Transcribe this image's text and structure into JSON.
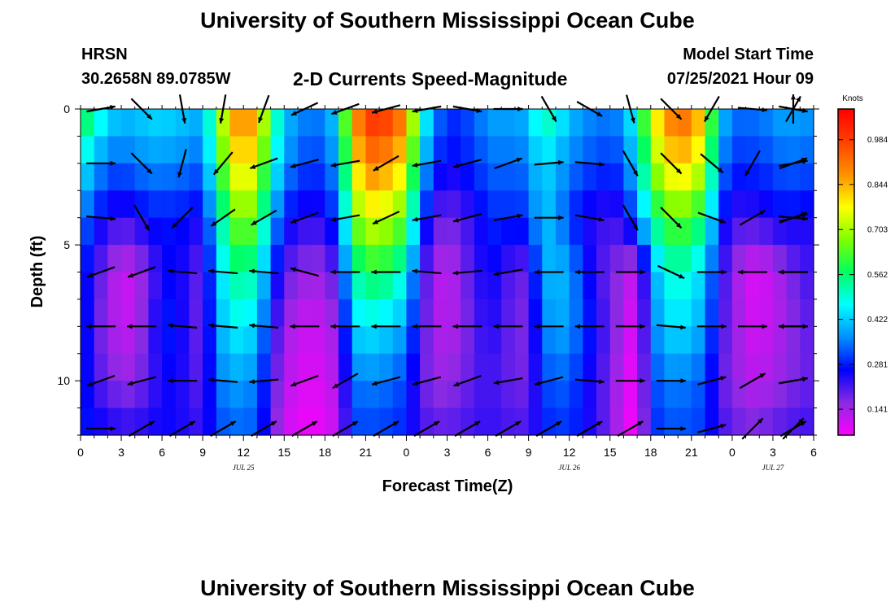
{
  "header": {
    "title": "University of Southern Mississippi Ocean Cube",
    "footer_title": "University of Southern Mississippi Ocean Cube",
    "station": "HRSN",
    "coordinates": "30.2658N  89.0785W",
    "subtitle": "2-D Currents Speed-Magnitude",
    "start_label": "Model Start Time",
    "start_value": "07/25/2021 Hour 09"
  },
  "chart_data": {
    "type": "heatmap",
    "title": "2-D Currents Speed-Magnitude",
    "xlabel": "Forecast Time(Z)",
    "ylabel": "Depth (ft)",
    "x_ticks": [
      "0",
      "3",
      "6",
      "9",
      "12",
      "15",
      "18",
      "21",
      "0",
      "3",
      "6",
      "9",
      "12",
      "15",
      "18",
      "21",
      "0",
      "3",
      "6"
    ],
    "x_range_hours": [
      0,
      54
    ],
    "date_labels": [
      {
        "label": "JUL 25",
        "hour": 12
      },
      {
        "label": "JUL 26",
        "hour": 36
      },
      {
        "label": "JUL 27",
        "hour": 51
      }
    ],
    "y_ticks": [
      "0",
      "5",
      "10"
    ],
    "y_range_ft": [
      0,
      12
    ],
    "colorbar": {
      "title": "Knots",
      "labels": [
        "0.984",
        "0.844",
        "0.703",
        "0.562",
        "0.422",
        "0.281",
        "0.141"
      ],
      "range": [
        0.06,
        1.08
      ]
    },
    "time_hours": [
      0,
      1,
      2,
      3,
      4,
      5,
      6,
      7,
      8,
      9,
      10,
      11,
      12,
      13,
      14,
      15,
      16,
      17,
      18,
      19,
      20,
      21,
      22,
      23,
      24,
      25,
      26,
      27,
      28,
      29,
      30,
      31,
      32,
      33,
      34,
      35,
      36,
      37,
      38,
      39,
      40,
      41,
      42,
      43,
      44,
      45,
      46,
      47,
      48,
      49,
      50,
      51,
      52,
      53,
      54
    ],
    "depth_ft": [
      0,
      2,
      4,
      6,
      8,
      10,
      12
    ],
    "speed_knots_by_depth": [
      [
        0.62,
        0.55,
        0.45,
        0.42,
        0.42,
        0.44,
        0.45,
        0.43,
        0.42,
        0.4,
        0.62,
        0.85,
        0.92,
        0.85,
        0.6,
        0.42,
        0.38,
        0.35,
        0.37,
        0.45,
        0.85,
        1.0,
        1.02,
        0.98,
        0.9,
        0.55,
        0.38,
        0.3,
        0.3,
        0.34,
        0.38,
        0.4,
        0.38,
        0.42,
        0.55,
        0.5,
        0.42,
        0.38,
        0.36,
        0.36,
        0.38,
        0.52,
        0.75,
        0.88,
        0.95,
        0.92,
        0.8,
        0.45,
        0.35,
        0.35,
        0.35,
        0.38,
        0.4,
        0.38,
        0.38
      ],
      [
        0.48,
        0.4,
        0.34,
        0.33,
        0.35,
        0.37,
        0.37,
        0.36,
        0.35,
        0.33,
        0.55,
        0.75,
        0.82,
        0.75,
        0.52,
        0.38,
        0.33,
        0.3,
        0.32,
        0.4,
        0.75,
        0.9,
        0.9,
        0.85,
        0.78,
        0.45,
        0.3,
        0.26,
        0.27,
        0.3,
        0.33,
        0.35,
        0.33,
        0.36,
        0.45,
        0.4,
        0.36,
        0.33,
        0.31,
        0.3,
        0.32,
        0.45,
        0.65,
        0.78,
        0.82,
        0.8,
        0.7,
        0.38,
        0.29,
        0.3,
        0.3,
        0.32,
        0.34,
        0.33,
        0.33
      ],
      [
        0.36,
        0.29,
        0.24,
        0.22,
        0.24,
        0.27,
        0.28,
        0.27,
        0.27,
        0.24,
        0.45,
        0.62,
        0.7,
        0.62,
        0.42,
        0.28,
        0.25,
        0.23,
        0.25,
        0.32,
        0.62,
        0.75,
        0.74,
        0.7,
        0.63,
        0.34,
        0.21,
        0.18,
        0.2,
        0.24,
        0.28,
        0.3,
        0.28,
        0.31,
        0.42,
        0.38,
        0.3,
        0.25,
        0.23,
        0.22,
        0.24,
        0.35,
        0.52,
        0.62,
        0.66,
        0.62,
        0.55,
        0.3,
        0.22,
        0.22,
        0.23,
        0.25,
        0.27,
        0.25,
        0.25
      ],
      [
        0.3,
        0.22,
        0.16,
        0.1,
        0.12,
        0.18,
        0.25,
        0.27,
        0.22,
        0.18,
        0.4,
        0.52,
        0.55,
        0.5,
        0.32,
        0.2,
        0.17,
        0.14,
        0.16,
        0.22,
        0.5,
        0.58,
        0.58,
        0.55,
        0.47,
        0.25,
        0.14,
        0.11,
        0.16,
        0.22,
        0.26,
        0.24,
        0.18,
        0.2,
        0.38,
        0.42,
        0.38,
        0.3,
        0.22,
        0.18,
        0.14,
        0.1,
        0.36,
        0.47,
        0.52,
        0.47,
        0.42,
        0.24,
        0.17,
        0.1,
        0.09,
        0.12,
        0.16,
        0.2,
        0.22
      ],
      [
        0.32,
        0.2,
        0.15,
        0.11,
        0.12,
        0.2,
        0.28,
        0.28,
        0.22,
        0.17,
        0.38,
        0.45,
        0.47,
        0.42,
        0.26,
        0.15,
        0.12,
        0.1,
        0.12,
        0.16,
        0.42,
        0.46,
        0.44,
        0.42,
        0.38,
        0.22,
        0.14,
        0.12,
        0.15,
        0.2,
        0.24,
        0.22,
        0.17,
        0.18,
        0.34,
        0.4,
        0.37,
        0.32,
        0.24,
        0.2,
        0.12,
        0.08,
        0.34,
        0.42,
        0.45,
        0.42,
        0.38,
        0.22,
        0.17,
        0.11,
        0.1,
        0.12,
        0.15,
        0.18,
        0.2
      ],
      [
        0.3,
        0.22,
        0.18,
        0.15,
        0.16,
        0.2,
        0.25,
        0.26,
        0.22,
        0.19,
        0.34,
        0.38,
        0.38,
        0.35,
        0.22,
        0.13,
        0.1,
        0.09,
        0.1,
        0.14,
        0.34,
        0.36,
        0.35,
        0.34,
        0.3,
        0.2,
        0.15,
        0.15,
        0.17,
        0.2,
        0.22,
        0.2,
        0.18,
        0.18,
        0.3,
        0.34,
        0.32,
        0.28,
        0.22,
        0.18,
        0.1,
        0.07,
        0.3,
        0.35,
        0.36,
        0.34,
        0.32,
        0.2,
        0.16,
        0.13,
        0.12,
        0.14,
        0.16,
        0.18,
        0.19
      ],
      [
        0.28,
        0.27,
        0.26,
        0.24,
        0.24,
        0.25,
        0.26,
        0.25,
        0.24,
        0.22,
        0.3,
        0.33,
        0.33,
        0.32,
        0.2,
        0.1,
        0.08,
        0.07,
        0.08,
        0.12,
        0.3,
        0.31,
        0.3,
        0.3,
        0.28,
        0.22,
        0.2,
        0.2,
        0.21,
        0.22,
        0.23,
        0.22,
        0.21,
        0.21,
        0.27,
        0.3,
        0.29,
        0.27,
        0.22,
        0.18,
        0.09,
        0.06,
        0.28,
        0.31,
        0.32,
        0.31,
        0.3,
        0.22,
        0.2,
        0.18,
        0.18,
        0.2,
        0.21,
        0.22,
        0.22
      ]
    ],
    "vectors_note": "current direction arrows drawn at depths 0,2,4,6,8,10,12 ft every 3 forecast hours",
    "vector_direction_deg": [
      [
        80,
        135,
        170,
        190,
        200,
        245,
        250,
        255,
        260,
        100,
        90,
        150,
        120,
        165,
        135,
        210,
        95,
        100,
        30,
        0
      ],
      [
        90,
        135,
        195,
        220,
        250,
        255,
        260,
        240,
        260,
        255,
        70,
        85,
        95,
        150,
        135,
        130,
        210,
        70,
        70,
        80
      ],
      [
        95,
        150,
        225,
        235,
        240,
        250,
        260,
        245,
        260,
        255,
        80,
        90,
        100,
        150,
        135,
        110,
        60,
        70,
        75,
        95
      ],
      [
        250,
        250,
        275,
        275,
        275,
        285,
        270,
        270,
        275,
        265,
        260,
        270,
        270,
        90,
        115,
        90,
        270,
        270,
        270,
        270
      ],
      [
        270,
        270,
        275,
        275,
        275,
        270,
        270,
        270,
        270,
        270,
        270,
        270,
        270,
        90,
        95,
        90,
        90,
        90,
        270,
        270
      ],
      [
        250,
        255,
        270,
        275,
        265,
        250,
        240,
        255,
        255,
        250,
        260,
        255,
        95,
        90,
        90,
        75,
        60,
        80,
        80,
        80
      ],
      [
        90,
        60,
        60,
        60,
        60,
        60,
        60,
        60,
        60,
        60,
        60,
        60,
        60,
        60,
        90,
        75,
        45,
        45,
        60,
        60
      ]
    ]
  }
}
